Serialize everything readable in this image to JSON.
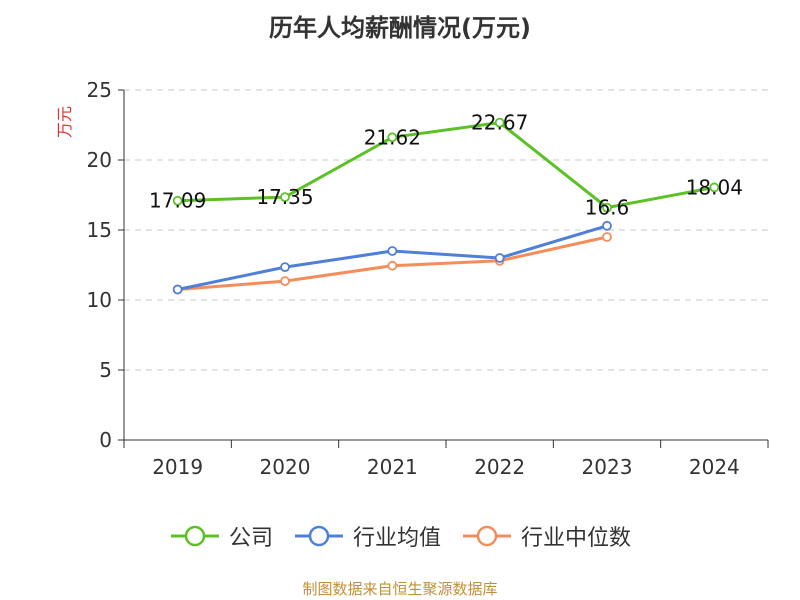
{
  "title": "历年人均薪酬情况(万元)",
  "source_note": "制图数据来自恒生聚源数据库",
  "chart_data": {
    "type": "line",
    "title": "历年人均薪酬情况(万元)",
    "ylabel": "万元",
    "xlabel": "",
    "ylim": [
      0,
      25
    ],
    "yticks": [
      0,
      5,
      10,
      15,
      20,
      25
    ],
    "categories": [
      "2019",
      "2020",
      "2021",
      "2022",
      "2023",
      "2024"
    ],
    "grid": true,
    "legend_position": "bottom",
    "series": [
      {
        "name": "公司",
        "color": "#5cc126",
        "values": [
          17.09,
          17.35,
          21.62,
          22.67,
          16.6,
          18.04
        ],
        "labels": [
          "17.09",
          "17.35",
          "21.62",
          "22.67",
          "16.6",
          "18.04"
        ],
        "show_labels": true
      },
      {
        "name": "行业均值",
        "color": "#4f7fd9",
        "values": [
          10.75,
          12.35,
          13.5,
          13.0,
          15.3,
          null
        ],
        "show_labels": false
      },
      {
        "name": "行业中位数",
        "color": "#f58d5b",
        "values": [
          10.75,
          11.35,
          12.45,
          12.8,
          14.5,
          null
        ],
        "show_labels": false
      }
    ]
  }
}
